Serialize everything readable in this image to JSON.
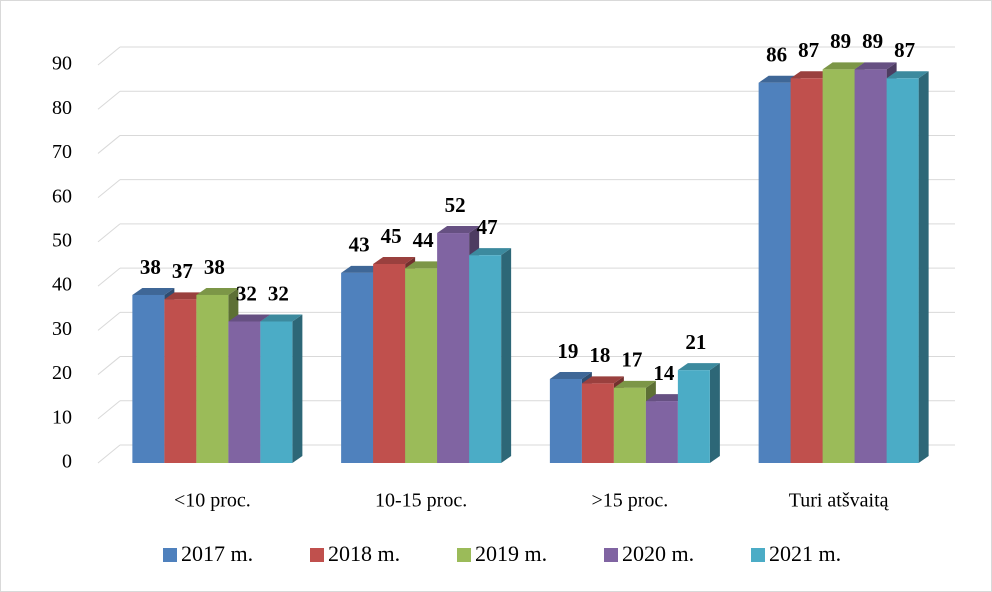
{
  "chart_data": {
    "type": "bar",
    "categories": [
      "<10 proc.",
      "10-15 proc.",
      ">15 proc.",
      "Turi atšvaitą"
    ],
    "series": [
      {
        "name": "2017 m.",
        "color": "#4f81bd",
        "values": [
          38,
          43,
          19,
          86
        ]
      },
      {
        "name": "2018 m.",
        "color": "#c0504d",
        "values": [
          37,
          45,
          18,
          87
        ]
      },
      {
        "name": "2019 m.",
        "color": "#9bbb59",
        "values": [
          38,
          44,
          17,
          89
        ]
      },
      {
        "name": "2020 m.",
        "color": "#8064a2",
        "values": [
          32,
          52,
          14,
          89
        ]
      },
      {
        "name": "2021 m.",
        "color": "#4bacc6",
        "values": [
          32,
          47,
          21,
          87
        ]
      }
    ],
    "ylim": [
      0,
      90
    ],
    "yticks": [
      0,
      10,
      20,
      30,
      40,
      50,
      60,
      70,
      80,
      90
    ],
    "grid": true
  }
}
